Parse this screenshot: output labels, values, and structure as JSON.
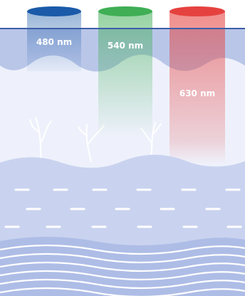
{
  "beams": [
    {
      "label": "480 nm",
      "color": "#1a5aa8"
    },
    {
      "label": "540 nm",
      "color": "#3fae55"
    },
    {
      "label": "630 nm",
      "color": "#e5423f"
    }
  ],
  "colors": {
    "surface_line": "#3d5fa8",
    "epidermis": "#b9c6e8",
    "dermis": "#eef1fb",
    "layer_band": "#c9d3ef",
    "deep_wave": "#aebde6",
    "dash": "#ffffff"
  }
}
